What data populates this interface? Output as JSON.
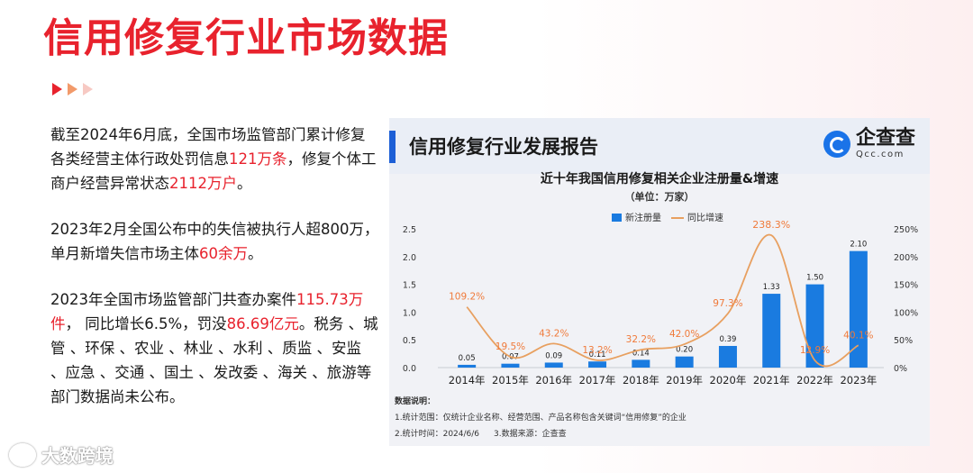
{
  "page": {
    "title": "信用修复行业市场数据",
    "watermark": "大数跨境"
  },
  "text": {
    "p1": {
      "a": "截至2024年6月底，全国市场监管部门累计修复各类经营主体行政处罚信息",
      "hl1": "121万条",
      "b": "，修复个体工商户经营异常状态",
      "hl2": "2112万户",
      "c": "。"
    },
    "p2": {
      "a": "2023年2月全国公布中的失信被执行人超800万，单月新增失信市场主体",
      "hl1": "60余万",
      "b": "。"
    },
    "p3": {
      "a": "2023年全国市场监管部门共查办案件",
      "hl1": "115.73万件",
      "b": "， 同比增长6.5%，罚没",
      "hl2": "86.69亿元",
      "c": "。税务 、城管 、环保 、农业 、林业 、水利 、质监 、安监 、应急 、交通 、国土 、发改委 、海关 、旅游等部门数据尚未公布。"
    }
  },
  "report": {
    "header": "信用修复行业发展报告",
    "logo_cn": "企查查",
    "logo_en": "Qcc.com",
    "notes_title": "数据说明：",
    "note1": "1.统计范围：仅统计企业名称、经营范围、产品名称包含关键词“信用修复”的企业",
    "note2": "2.统计时间：2024/6/6",
    "note3": "3.数据来源：企查查"
  },
  "colors": {
    "accent": "#e8222d",
    "bar": "#1a7be0",
    "line": "#e8a060",
    "line_label": "#f07a3a"
  },
  "chart_data": {
    "type": "bar",
    "title": "近十年我国信用修复相关企业注册量&增速",
    "subtitle": "（单位：万家）",
    "categories": [
      "2014年",
      "2015年",
      "2016年",
      "2017年",
      "2018年",
      "2019年",
      "2020年",
      "2021年",
      "2022年",
      "2023年"
    ],
    "series": [
      {
        "name": "新注册量",
        "type": "bar",
        "axis": "left",
        "values": [
          0.05,
          0.07,
          0.09,
          0.11,
          0.14,
          0.2,
          0.39,
          1.33,
          1.5,
          2.1
        ],
        "labels": [
          "0.05",
          "0.07",
          "0.09",
          "0.11",
          "0.14",
          "0.20",
          "0.39",
          "1.33",
          "1.50",
          "2.10"
        ]
      },
      {
        "name": "同比增速",
        "type": "line",
        "axis": "right",
        "values": [
          109.2,
          19.5,
          43.2,
          13.2,
          32.2,
          42.0,
          97.3,
          238.3,
          12.9,
          40.1
        ],
        "labels": [
          "109.2%",
          "19.5%",
          "43.2%",
          "13.2%",
          "32.2%",
          "42.0%",
          "97.3%",
          "238.3%",
          "12.9%",
          "40.1%"
        ]
      }
    ],
    "ylim_left": [
      0,
      2.5
    ],
    "yticks_left": [
      "0.0",
      "0.5",
      "1.0",
      "1.5",
      "2.0",
      "2.5"
    ],
    "ylim_right": [
      0,
      250
    ],
    "yticks_right": [
      "0%",
      "50%",
      "100%",
      "150%",
      "200%",
      "250%"
    ],
    "legend_position": "top-center",
    "grid": false
  }
}
